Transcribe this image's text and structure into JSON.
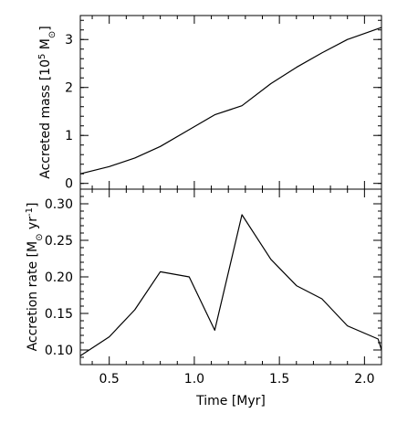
{
  "chart_data": [
    {
      "type": "line",
      "ylabel_text": "Accreted mass",
      "ylabel_unit": "[10",
      "ylabel_exp": "5",
      "ylabel_unit_rest": "M",
      "ylabel_sun": "⊙",
      "ylabel_close": "]",
      "xlim": [
        0.33,
        2.1
      ],
      "ylim": [
        -0.12,
        3.5
      ],
      "yticks": [
        0,
        1,
        2,
        3
      ],
      "yticklabels": [
        "0",
        "1",
        "2",
        "3"
      ],
      "grid": false,
      "series": [
        {
          "x": [
            0.33,
            0.5,
            0.65,
            0.8,
            0.97,
            1.12,
            1.28,
            1.45,
            1.6,
            1.75,
            1.9,
            2.1
          ],
          "y": [
            0.2,
            0.35,
            0.53,
            0.77,
            1.12,
            1.43,
            1.62,
            2.08,
            2.42,
            2.72,
            3.0,
            3.25
          ]
        }
      ]
    },
    {
      "type": "line",
      "ylabel_text": "Accretion rate",
      "ylabel_unit": "[M",
      "ylabel_sun": "⊙",
      "ylabel_yr": "yr",
      "ylabel_exp": "-1",
      "ylabel_close": "]",
      "xlabel": "Time [Myr]",
      "xlim": [
        0.33,
        2.1
      ],
      "ylim": [
        0.08,
        0.32
      ],
      "xticks": [
        0.5,
        1.0,
        1.5,
        2.0
      ],
      "xticklabels": [
        "0.5",
        "1.0",
        "1.5",
        "2.0"
      ],
      "yticks": [
        0.1,
        0.15,
        0.2,
        0.25,
        0.3
      ],
      "yticklabels": [
        "0.10",
        "0.15",
        "0.20",
        "0.25",
        "0.30"
      ],
      "grid": false,
      "series": [
        {
          "x": [
            0.33,
            0.5,
            0.65,
            0.8,
            0.97,
            1.12,
            1.28,
            1.45,
            1.6,
            1.75,
            1.9,
            2.08,
            2.1
          ],
          "y": [
            0.092,
            0.118,
            0.155,
            0.207,
            0.2,
            0.127,
            0.285,
            0.224,
            0.188,
            0.17,
            0.133,
            0.115,
            0.1
          ]
        }
      ]
    }
  ]
}
